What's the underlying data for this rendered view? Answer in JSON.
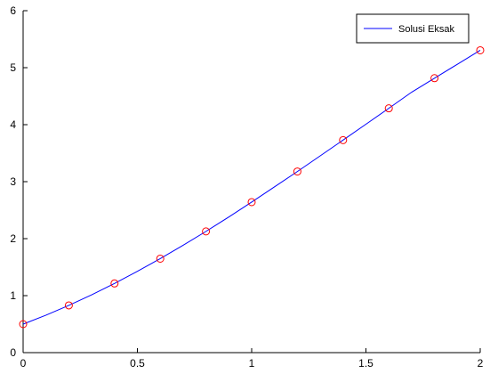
{
  "chart_data": {
    "type": "line",
    "title": "",
    "xlabel": "",
    "ylabel": "",
    "xlim": [
      0,
      2
    ],
    "ylim": [
      0,
      6
    ],
    "grid": false,
    "legend_placement": "top-right",
    "x_ticks": [
      0,
      0.5,
      1,
      1.5,
      2
    ],
    "x_tick_labels": [
      "0",
      "0.5",
      "1",
      "1.5",
      "2"
    ],
    "y_ticks": [
      0,
      1,
      2,
      3,
      4,
      5,
      6
    ],
    "y_tick_labels": [
      "0",
      "1",
      "2",
      "3",
      "4",
      "5",
      "6"
    ],
    "series": [
      {
        "name": "Solusi Eksak",
        "style": "line",
        "color": "#0000ff",
        "function_note_hidden": true,
        "x": [
          0,
          0.1,
          0.2,
          0.3,
          0.4,
          0.5,
          0.6,
          0.7,
          0.8,
          0.9,
          1.0,
          1.1,
          1.2,
          1.3,
          1.4,
          1.5,
          1.6,
          1.7,
          1.8,
          1.9,
          2.0
        ],
        "y": [
          0.5,
          0.657,
          0.829,
          1.015,
          1.214,
          1.426,
          1.649,
          1.884,
          2.127,
          2.38,
          2.641,
          2.909,
          3.178,
          3.453,
          3.729,
          4.008,
          4.287,
          4.57,
          4.816,
          5.06,
          5.305
        ]
      },
      {
        "style": "markers",
        "marker": "circle",
        "color": "#ff0000",
        "x": [
          0,
          0.2,
          0.4,
          0.6,
          0.8,
          1.0,
          1.2,
          1.4,
          1.6,
          1.8,
          2.0
        ],
        "y": [
          0.5,
          0.829,
          1.214,
          1.649,
          2.127,
          2.641,
          3.178,
          3.729,
          4.287,
          4.816,
          5.305
        ]
      }
    ]
  }
}
